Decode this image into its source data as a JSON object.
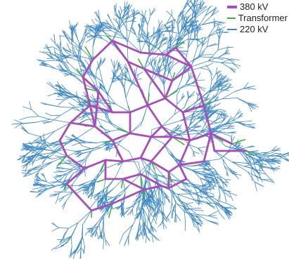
{
  "legend": {
    "items": [
      {
        "label": "380 kV",
        "color": "#A64DB8"
      },
      {
        "label": "Transformer",
        "color": "#3CB43C"
      },
      {
        "label": "220 kV",
        "color": "#3F88C5"
      }
    ]
  },
  "colors": {
    "kv380": "#A64DB8",
    "transformer": "#3CB43C",
    "kv220": "#3F88C5",
    "background": "#FFFFFF"
  }
}
